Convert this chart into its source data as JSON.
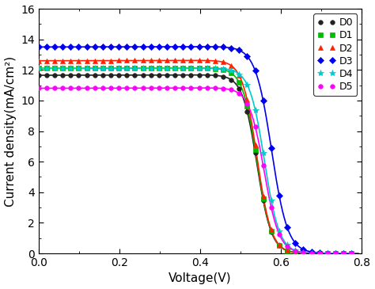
{
  "title": "",
  "xlabel": "Voltage(V)",
  "ylabel": "Current density(mA/cm²)",
  "xlim": [
    0.0,
    0.8
  ],
  "ylim": [
    0.0,
    16.0
  ],
  "xticks": [
    0.0,
    0.2,
    0.4,
    0.6,
    0.8
  ],
  "yticks": [
    0,
    2,
    4,
    6,
    8,
    10,
    12,
    14,
    16
  ],
  "series": [
    {
      "label": "D0",
      "color": "#222222",
      "marker": "o",
      "markersize": 4,
      "jsc": 11.65,
      "voc": 0.614,
      "sharpness": 28.0,
      "slope": 0.06
    },
    {
      "label": "D1",
      "color": "#00bb00",
      "marker": "s",
      "markersize": 4,
      "jsc": 12.1,
      "voc": 0.614,
      "sharpness": 28.0,
      "slope": 0.06
    },
    {
      "label": "D2",
      "color": "#ff2200",
      "marker": "^",
      "markersize": 5,
      "jsc": 12.6,
      "voc": 0.614,
      "sharpness": 28.0,
      "slope": 0.06
    },
    {
      "label": "D3",
      "color": "#0000ee",
      "marker": "D",
      "markersize": 4,
      "jsc": 13.5,
      "voc": 0.655,
      "sharpness": 25.0,
      "slope": 0.06
    },
    {
      "label": "D4",
      "color": "#00cccc",
      "marker": "*",
      "markersize": 6,
      "jsc": 12.1,
      "voc": 0.635,
      "sharpness": 27.0,
      "slope": 0.06
    },
    {
      "label": "D5",
      "color": "#ff00ff",
      "marker": "o",
      "markersize": 4,
      "jsc": 10.8,
      "voc": 0.634,
      "sharpness": 27.0,
      "slope": 0.06
    }
  ],
  "figsize": [
    4.74,
    3.65
  ],
  "dpi": 100,
  "marker_step": 5,
  "linewidth": 1.2
}
